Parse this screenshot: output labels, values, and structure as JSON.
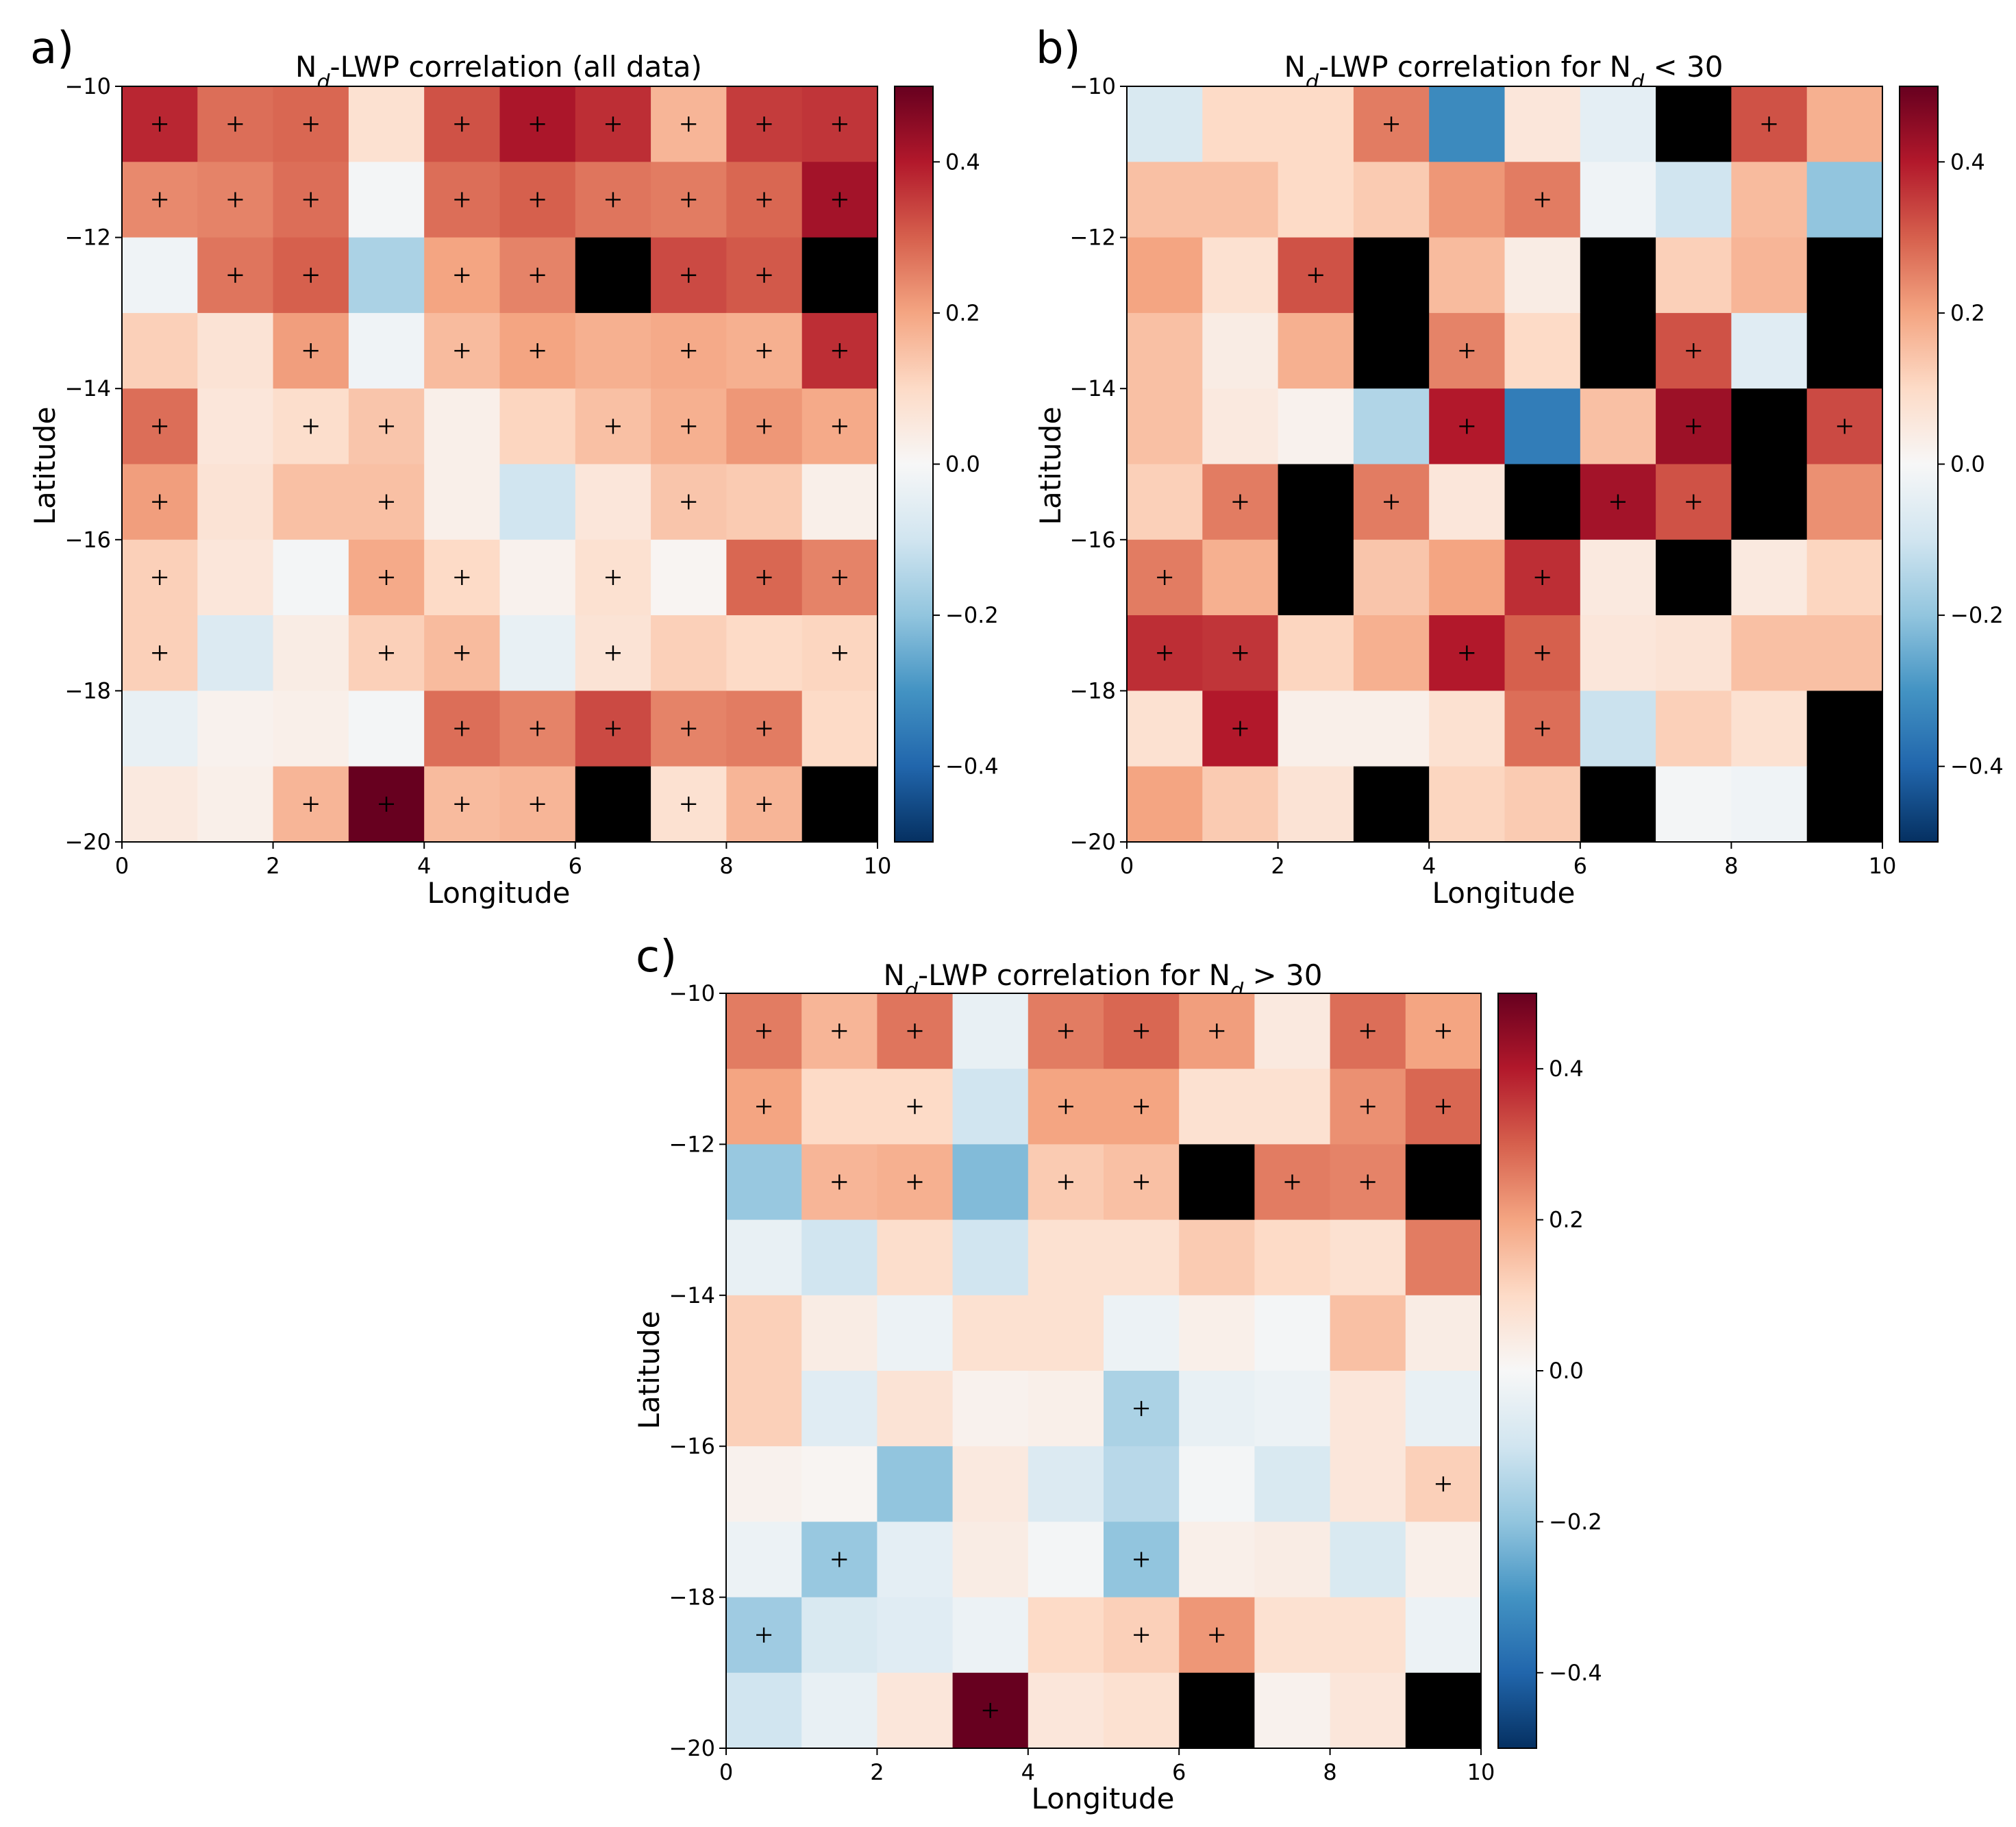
{
  "chart_data": [
    {
      "type": "heatmap",
      "panel_label": "a)",
      "title": {
        "main": "N",
        "sub": "d",
        "rest": "-LWP correlation (all data)"
      },
      "xlabel": "Longitude",
      "ylabel": "Latitude",
      "xlim": [
        0,
        10
      ],
      "ylim": [
        -20,
        -10
      ],
      "xticks": [
        "0",
        "2",
        "4",
        "6",
        "8",
        "10"
      ],
      "yticks": [
        "-10",
        "-12",
        "-14",
        "-16",
        "-18",
        "-20"
      ],
      "colorbar": {
        "vmin": -0.5,
        "vmax": 0.5,
        "ticks": [
          "0.4",
          "0.2",
          "0.0",
          "-0.2",
          "-0.4"
        ]
      },
      "values": [
        [
          0.38,
          0.28,
          0.29,
          0.08,
          0.32,
          0.41,
          0.37,
          0.17,
          0.35,
          0.36
        ],
        [
          0.24,
          0.25,
          0.28,
          -0.01,
          0.28,
          0.3,
          0.27,
          0.26,
          0.29,
          0.42
        ],
        [
          -0.02,
          0.27,
          0.3,
          -0.16,
          0.2,
          0.25,
          null,
          0.33,
          0.31,
          null
        ],
        [
          0.12,
          0.07,
          0.21,
          -0.02,
          0.16,
          0.2,
          0.18,
          0.19,
          0.18,
          0.37
        ],
        [
          0.28,
          0.06,
          0.09,
          0.14,
          0.03,
          0.11,
          0.15,
          0.18,
          0.22,
          0.19
        ],
        [
          0.21,
          0.07,
          0.15,
          0.15,
          0.03,
          -0.1,
          0.06,
          0.14,
          0.13,
          0.03
        ],
        [
          0.12,
          0.06,
          -0.01,
          0.19,
          0.1,
          0.02,
          0.08,
          0.01,
          0.29,
          0.25
        ],
        [
          0.12,
          -0.07,
          0.04,
          0.12,
          0.16,
          -0.04,
          0.07,
          0.12,
          0.1,
          0.11
        ],
        [
          -0.04,
          0.02,
          0.03,
          -0.01,
          0.28,
          0.25,
          0.33,
          0.25,
          0.26,
          0.1
        ],
        [
          0.05,
          0.03,
          0.17,
          0.5,
          0.16,
          0.17,
          null,
          0.08,
          0.17,
          null
        ]
      ],
      "significant": [
        [
          1,
          1,
          1,
          0,
          1,
          1,
          1,
          1,
          1,
          1
        ],
        [
          1,
          1,
          1,
          0,
          1,
          1,
          1,
          1,
          1,
          1
        ],
        [
          0,
          1,
          1,
          0,
          1,
          1,
          0,
          1,
          1,
          0
        ],
        [
          0,
          0,
          1,
          0,
          1,
          1,
          0,
          1,
          1,
          1
        ],
        [
          1,
          0,
          1,
          1,
          0,
          0,
          1,
          1,
          1,
          1
        ],
        [
          1,
          0,
          0,
          1,
          0,
          0,
          0,
          1,
          0,
          0
        ],
        [
          1,
          0,
          0,
          1,
          1,
          0,
          1,
          0,
          1,
          1
        ],
        [
          1,
          0,
          0,
          1,
          1,
          0,
          1,
          0,
          0,
          1
        ],
        [
          0,
          0,
          0,
          0,
          1,
          1,
          1,
          1,
          1,
          0
        ],
        [
          0,
          0,
          1,
          1,
          1,
          1,
          0,
          1,
          1,
          0
        ]
      ]
    },
    {
      "type": "heatmap",
      "panel_label": "b)",
      "title": {
        "main": "N",
        "sub": "d",
        "rest": "-LWP correlation for N",
        "sub2": "d",
        "rest2": " < 30"
      },
      "xlabel": "Longitude",
      "ylabel": "Latitude",
      "xlim": [
        0,
        10
      ],
      "ylim": [
        -20,
        -10
      ],
      "xticks": [
        "0",
        "2",
        "4",
        "6",
        "8",
        "10"
      ],
      "yticks": [
        "-10",
        "-12",
        "-14",
        "-16",
        "-18",
        "-20"
      ],
      "colorbar": {
        "vmin": -0.5,
        "vmax": 0.5,
        "ticks": [
          "0.4",
          "0.2",
          "0.0",
          "-0.2",
          "-0.4"
        ]
      },
      "values": [
        [
          -0.08,
          0.1,
          0.1,
          0.26,
          -0.32,
          0.06,
          -0.05,
          null,
          0.32,
          0.18
        ],
        [
          0.15,
          0.15,
          0.1,
          0.13,
          0.22,
          0.26,
          -0.02,
          -0.1,
          0.16,
          -0.2
        ],
        [
          0.2,
          0.08,
          0.32,
          null,
          0.16,
          0.04,
          null,
          0.12,
          0.17,
          null
        ],
        [
          0.15,
          0.04,
          0.18,
          null,
          0.25,
          0.1,
          null,
          0.32,
          -0.06,
          null
        ],
        [
          0.15,
          0.05,
          0.02,
          -0.15,
          0.4,
          -0.35,
          0.15,
          0.43,
          null,
          0.33
        ],
        [
          0.12,
          0.26,
          null,
          0.26,
          0.06,
          null,
          0.42,
          0.32,
          null,
          0.23
        ],
        [
          0.26,
          0.18,
          null,
          0.14,
          0.2,
          0.37,
          0.05,
          null,
          0.05,
          0.11
        ],
        [
          0.37,
          0.36,
          0.11,
          0.18,
          0.4,
          0.3,
          0.06,
          0.07,
          0.15,
          0.15
        ],
        [
          0.08,
          0.4,
          0.03,
          0.03,
          0.08,
          0.28,
          -0.11,
          0.12,
          0.08,
          null
        ],
        [
          0.2,
          0.13,
          0.07,
          null,
          0.11,
          0.13,
          null,
          -0.01,
          -0.02,
          null
        ]
      ],
      "significant": [
        [
          0,
          0,
          0,
          1,
          0,
          0,
          0,
          0,
          1,
          0
        ],
        [
          0,
          0,
          0,
          0,
          0,
          1,
          0,
          0,
          0,
          0
        ],
        [
          0,
          0,
          1,
          0,
          0,
          0,
          0,
          0,
          0,
          0
        ],
        [
          0,
          0,
          0,
          0,
          1,
          0,
          0,
          1,
          0,
          0
        ],
        [
          0,
          0,
          0,
          0,
          1,
          0,
          0,
          1,
          0,
          1
        ],
        [
          0,
          1,
          0,
          1,
          0,
          0,
          1,
          1,
          0,
          0
        ],
        [
          1,
          0,
          0,
          0,
          0,
          1,
          0,
          0,
          0,
          0
        ],
        [
          1,
          1,
          0,
          0,
          1,
          1,
          0,
          0,
          0,
          0
        ],
        [
          0,
          1,
          0,
          0,
          0,
          1,
          0,
          0,
          0,
          0
        ],
        [
          0,
          0,
          0,
          0,
          0,
          0,
          0,
          0,
          0,
          0
        ]
      ]
    },
    {
      "type": "heatmap",
      "panel_label": "c)",
      "title": {
        "main": "N",
        "sub": "d",
        "rest": "-LWP correlation for N",
        "sub2": "d",
        "rest2": " > 30"
      },
      "xlabel": "Longitude",
      "ylabel": "Latitude",
      "xlim": [
        0,
        10
      ],
      "ylim": [
        -20,
        -10
      ],
      "xticks": [
        "0",
        "2",
        "4",
        "6",
        "8",
        "10"
      ],
      "yticks": [
        "-10",
        "-12",
        "-14",
        "-16",
        "-18",
        "-20"
      ],
      "colorbar": {
        "vmin": -0.5,
        "vmax": 0.5,
        "ticks": [
          "0.4",
          "0.2",
          "0.0",
          "-0.2",
          "-0.4"
        ]
      },
      "values": [
        [
          0.26,
          0.17,
          0.27,
          -0.04,
          0.26,
          0.29,
          0.21,
          0.05,
          0.28,
          0.2
        ],
        [
          0.2,
          0.1,
          0.1,
          -0.1,
          0.2,
          0.2,
          0.08,
          0.08,
          0.23,
          0.29
        ],
        [
          -0.19,
          0.17,
          0.18,
          -0.22,
          0.13,
          0.15,
          null,
          0.26,
          0.25,
          null
        ],
        [
          -0.04,
          -0.1,
          0.09,
          -0.1,
          0.08,
          0.08,
          0.13,
          0.1,
          0.08,
          0.26
        ],
        [
          0.12,
          0.04,
          -0.03,
          0.08,
          0.08,
          -0.03,
          0.03,
          -0.01,
          0.15,
          0.04
        ],
        [
          0.12,
          -0.06,
          0.07,
          0.02,
          0.03,
          -0.16,
          -0.04,
          -0.03,
          0.06,
          -0.04
        ],
        [
          0.02,
          0.01,
          -0.2,
          0.05,
          -0.07,
          -0.14,
          -0.01,
          -0.08,
          0.06,
          0.12
        ],
        [
          -0.03,
          -0.19,
          -0.05,
          0.04,
          -0.01,
          -0.2,
          0.03,
          0.04,
          -0.08,
          0.03
        ],
        [
          -0.18,
          -0.08,
          -0.06,
          -0.03,
          0.1,
          0.12,
          0.22,
          0.08,
          0.08,
          -0.03
        ],
        [
          -0.1,
          -0.04,
          0.06,
          0.5,
          0.06,
          0.08,
          null,
          0.02,
          0.06,
          null
        ]
      ],
      "significant": [
        [
          1,
          1,
          1,
          0,
          1,
          1,
          1,
          0,
          1,
          1
        ],
        [
          1,
          0,
          1,
          0,
          1,
          1,
          0,
          0,
          1,
          1
        ],
        [
          0,
          1,
          1,
          0,
          1,
          1,
          0,
          1,
          1,
          0
        ],
        [
          0,
          0,
          0,
          0,
          0,
          0,
          0,
          0,
          0,
          0
        ],
        [
          0,
          0,
          0,
          0,
          0,
          0,
          0,
          0,
          0,
          0
        ],
        [
          0,
          0,
          0,
          0,
          0,
          1,
          0,
          0,
          0,
          0
        ],
        [
          0,
          0,
          0,
          0,
          0,
          0,
          0,
          0,
          0,
          1
        ],
        [
          0,
          1,
          0,
          0,
          0,
          1,
          0,
          0,
          0,
          0
        ],
        [
          1,
          0,
          0,
          0,
          0,
          1,
          1,
          0,
          0,
          0
        ],
        [
          0,
          0,
          0,
          1,
          0,
          0,
          0,
          0,
          0,
          0
        ]
      ]
    }
  ]
}
